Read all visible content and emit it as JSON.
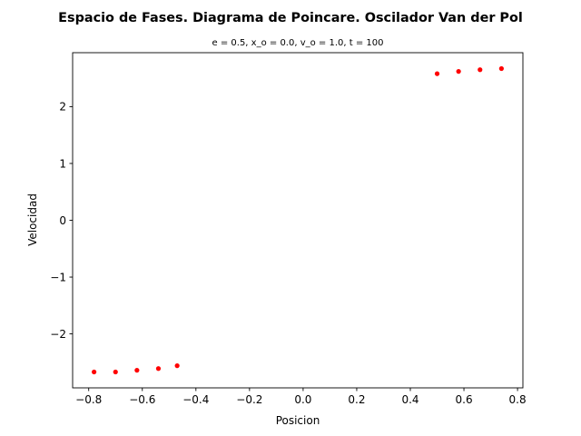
{
  "chart_data": {
    "type": "scatter",
    "title": "Espacio de Fases. Diagrama de Poincare. Oscilador Van der Pol",
    "subtitle": "e = 0.5, x_o = 0.0, v_o = 1.0, t = 100",
    "xlabel": "Posicion",
    "ylabel": "Velocidad",
    "xlim": [
      -0.86,
      0.82
    ],
    "ylim": [
      -2.95,
      2.95
    ],
    "x_ticks": [
      -0.8,
      -0.6,
      -0.4,
      -0.2,
      0.0,
      0.2,
      0.4,
      0.6,
      0.8
    ],
    "x_tick_labels": [
      "−0.8",
      "−0.6",
      "−0.4",
      "−0.2",
      "0.0",
      "0.2",
      "0.4",
      "0.6",
      "0.8"
    ],
    "y_ticks": [
      -2,
      -1,
      0,
      1,
      2
    ],
    "y_tick_labels": [
      "−2",
      "−1",
      "0",
      "1",
      "2"
    ],
    "grid": false,
    "marker_color": "#ff0000",
    "points": [
      {
        "x": -0.78,
        "y": -2.67
      },
      {
        "x": -0.7,
        "y": -2.67
      },
      {
        "x": -0.62,
        "y": -2.64
      },
      {
        "x": -0.54,
        "y": -2.61
      },
      {
        "x": -0.47,
        "y": -2.56
      },
      {
        "x": 0.5,
        "y": 2.58
      },
      {
        "x": 0.58,
        "y": 2.62
      },
      {
        "x": 0.66,
        "y": 2.65
      },
      {
        "x": 0.74,
        "y": 2.67
      }
    ]
  }
}
